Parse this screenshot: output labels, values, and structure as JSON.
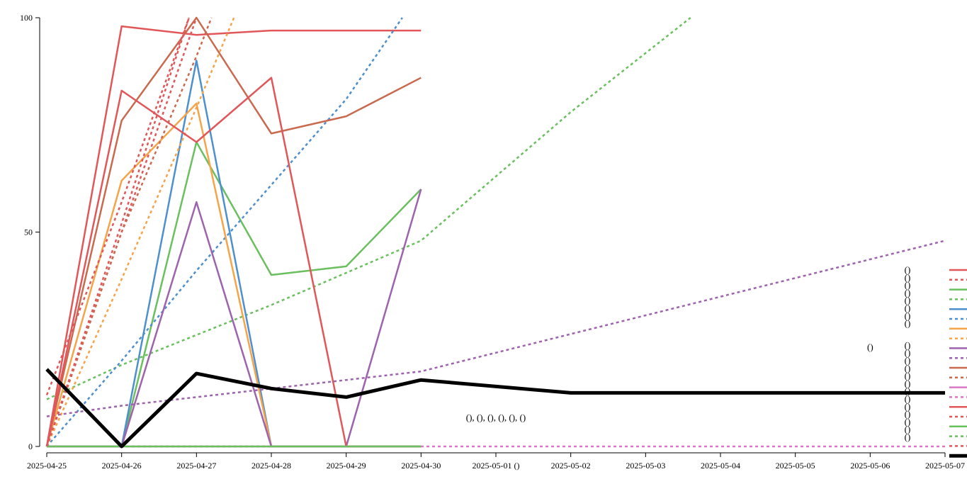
{
  "chart_data": {
    "type": "line",
    "title": "",
    "xlabel": "",
    "ylabel": "",
    "xlim": [
      "2025-04-25",
      "2025-05-07"
    ],
    "ylim": [
      0,
      100
    ],
    "grid": false,
    "x_ticks": [
      {
        "date": "2025-04-25",
        "label": "2025-04-25"
      },
      {
        "date": "2025-04-26",
        "label": "2025-04-26"
      },
      {
        "date": "2025-04-27",
        "label": "2025-04-27"
      },
      {
        "date": "2025-04-28",
        "label": "2025-04-28"
      },
      {
        "date": "2025-04-29",
        "label": "2025-04-29"
      },
      {
        "date": "2025-04-30",
        "label": "2025-04-30"
      },
      {
        "date": "2025-05-01",
        "label": "2025-05-01 ()"
      },
      {
        "date": "2025-05-02",
        "label": "2025-05-02"
      },
      {
        "date": "2025-05-03",
        "label": "2025-05-03"
      },
      {
        "date": "2025-05-04",
        "label": "2025-05-04"
      },
      {
        "date": "2025-05-05",
        "label": "2025-05-05"
      },
      {
        "date": "2025-05-06",
        "label": "2025-05-06"
      },
      {
        "date": "2025-05-07",
        "label": "2025-05-07"
      }
    ],
    "y_ticks": [
      0,
      50,
      100
    ],
    "annotations": [
      {
        "text": "(), (), (), (), (), ()",
        "x": "2025-05-01",
        "y": 6
      },
      {
        "text": "()",
        "x": "2025-05-06",
        "y": 22.5
      }
    ],
    "legend": {
      "position": "right",
      "labels": [
        "()",
        "()",
        "()",
        "()",
        "()",
        "()",
        "()",
        "()",
        "()",
        "()",
        "()",
        "()",
        "()",
        "()",
        "()",
        "()",
        "()",
        "()",
        "()",
        "()",
        "()"
      ]
    },
    "series": [
      {
        "color": "#e15759",
        "dash": "solid",
        "width": 2.5,
        "points": [
          [
            "2025-04-25",
            0
          ],
          [
            "2025-04-26",
            98
          ],
          [
            "2025-04-27",
            96
          ],
          [
            "2025-04-28",
            97
          ],
          [
            "2025-04-29",
            97
          ],
          [
            "2025-04-30",
            97
          ]
        ]
      },
      {
        "color": "#e15759",
        "dash": "dashed",
        "width": 2.5,
        "points": [
          [
            "2025-04-25",
            0
          ],
          [
            "2025-04-27",
            100
          ]
        ]
      },
      {
        "color": "#6abf5e",
        "dash": "solid",
        "width": 2.5,
        "points": [
          [
            "2025-04-25",
            0
          ],
          [
            "2025-04-26",
            0
          ],
          [
            "2025-04-27",
            71
          ],
          [
            "2025-04-28",
            40
          ],
          [
            "2025-04-29",
            42
          ],
          [
            "2025-04-30",
            60
          ]
        ]
      },
      {
        "color": "#6abf5e",
        "dash": "dashed",
        "width": 2.5,
        "points": [
          [
            "2025-04-25",
            11
          ],
          [
            "2025-04-26",
            19
          ],
          [
            "2025-04-27",
            26
          ],
          [
            "2025-04-28",
            33
          ],
          [
            "2025-04-29",
            40.5
          ],
          [
            "2025-04-30",
            48
          ],
          [
            "2025-05-02",
            78
          ],
          [
            "2025-05-03.6",
            100
          ]
        ]
      },
      {
        "color": "#4e8fcd",
        "dash": "solid",
        "width": 2.5,
        "points": [
          [
            "2025-04-25",
            0
          ],
          [
            "2025-04-26",
            0
          ],
          [
            "2025-04-27",
            90
          ],
          [
            "2025-04-28",
            0
          ],
          [
            "2025-04-29",
            0
          ],
          [
            "2025-04-30",
            0
          ]
        ]
      },
      {
        "color": "#4e8fcd",
        "dash": "dashed",
        "width": 2.5,
        "points": [
          [
            "2025-04-25",
            0
          ],
          [
            "2025-04-26",
            20
          ],
          [
            "2025-04-27",
            41
          ],
          [
            "2025-04-28",
            61
          ],
          [
            "2025-04-29",
            81
          ],
          [
            "2025-04-29.75",
            100
          ]
        ]
      },
      {
        "color": "#f5a44a",
        "dash": "solid",
        "width": 2.5,
        "points": [
          [
            "2025-04-25",
            0
          ],
          [
            "2025-04-26",
            62
          ],
          [
            "2025-04-27",
            80
          ],
          [
            "2025-04-28",
            0
          ],
          [
            "2025-04-29",
            0
          ],
          [
            "2025-04-30",
            0
          ]
        ]
      },
      {
        "color": "#f5a44a",
        "dash": "dashed",
        "width": 2.5,
        "points": [
          [
            "2025-04-25",
            0
          ],
          [
            "2025-04-26",
            39
          ],
          [
            "2025-04-27",
            79
          ],
          [
            "2025-04-27.5",
            100
          ]
        ]
      },
      {
        "color": "#9e63ad",
        "dash": "solid",
        "width": 2.5,
        "points": [
          [
            "2025-04-25",
            0
          ],
          [
            "2025-04-26",
            0
          ],
          [
            "2025-04-27",
            57
          ],
          [
            "2025-04-28",
            0
          ],
          [
            "2025-04-29",
            0
          ],
          [
            "2025-04-30",
            60
          ]
        ]
      },
      {
        "color": "#9e63ad",
        "dash": "dashed",
        "width": 2.5,
        "points": [
          [
            "2025-04-25",
            7
          ],
          [
            "2025-04-26",
            9.5
          ],
          [
            "2025-04-27",
            11.5
          ],
          [
            "2025-04-28",
            13.5
          ],
          [
            "2025-04-29",
            15.5
          ],
          [
            "2025-04-30",
            17.5
          ],
          [
            "2025-05-07",
            48
          ]
        ]
      },
      {
        "color": "#c96a4f",
        "dash": "solid",
        "width": 2.5,
        "points": [
          [
            "2025-04-25",
            0
          ],
          [
            "2025-04-26",
            76
          ],
          [
            "2025-04-27",
            100
          ],
          [
            "2025-04-28",
            73
          ],
          [
            "2025-04-29",
            77
          ],
          [
            "2025-04-30",
            86
          ]
        ]
      },
      {
        "color": "#c96a4f",
        "dash": "dashed",
        "width": 2.5,
        "points": [
          [
            "2025-04-25",
            0
          ],
          [
            "2025-04-26",
            50
          ],
          [
            "2025-04-27",
            91
          ],
          [
            "2025-04-27.2",
            100
          ]
        ]
      },
      {
        "color": "#d978c4",
        "dash": "solid",
        "width": 2.5,
        "points": [
          [
            "2025-04-25",
            0
          ],
          [
            "2025-04-26",
            0
          ],
          [
            "2025-04-27",
            0
          ],
          [
            "2025-04-28",
            0
          ],
          [
            "2025-04-29",
            0
          ],
          [
            "2025-04-30",
            0
          ]
        ]
      },
      {
        "color": "#d978c4",
        "dash": "dashed",
        "width": 2.5,
        "points": [
          [
            "2025-04-25",
            0
          ],
          [
            "2025-04-30",
            0
          ],
          [
            "2025-05-07",
            0
          ]
        ]
      },
      {
        "color": "#e15759",
        "dash": "solid",
        "width": 2.5,
        "points": [
          [
            "2025-04-25",
            0
          ],
          [
            "2025-04-26",
            83
          ],
          [
            "2025-04-27",
            71
          ],
          [
            "2025-04-28",
            86
          ],
          [
            "2025-04-29",
            0
          ],
          [
            "2025-04-30",
            0
          ]
        ]
      },
      {
        "color": "#e15759",
        "dash": "dashed",
        "width": 2.5,
        "points": [
          [
            "2025-04-25",
            12
          ],
          [
            "2025-04-26",
            57
          ],
          [
            "2025-04-26.9",
            100
          ]
        ]
      },
      {
        "color": "#6abf5e",
        "dash": "solid",
        "width": 2.5,
        "points": [
          [
            "2025-04-25",
            0
          ],
          [
            "2025-04-26",
            0
          ],
          [
            "2025-04-27",
            0
          ],
          [
            "2025-04-28",
            0
          ],
          [
            "2025-04-29",
            0
          ],
          [
            "2025-04-30",
            0
          ]
        ]
      },
      {
        "color": "#6abf5e",
        "dash": "dashed",
        "width": 2.5,
        "points": [
          [
            "2025-04-25",
            0
          ],
          [
            "2025-04-30",
            0
          ]
        ]
      },
      {
        "color": "#e15759",
        "dash": "dashed",
        "width": 2.5,
        "points": [
          [
            "2025-04-25",
            0
          ],
          [
            "2025-04-26",
            52
          ],
          [
            "2025-04-26.9",
            100
          ]
        ]
      },
      {
        "color": "#000000",
        "dash": "solid",
        "width": 5,
        "points": [
          [
            "2025-04-25",
            18
          ],
          [
            "2025-04-26",
            0
          ],
          [
            "2025-04-27",
            17
          ],
          [
            "2025-04-28",
            13.5
          ],
          [
            "2025-04-29",
            11.5
          ],
          [
            "2025-04-30",
            15.5
          ],
          [
            "2025-05-02",
            12.5
          ],
          [
            "2025-05-07",
            12.5
          ]
        ]
      }
    ]
  }
}
